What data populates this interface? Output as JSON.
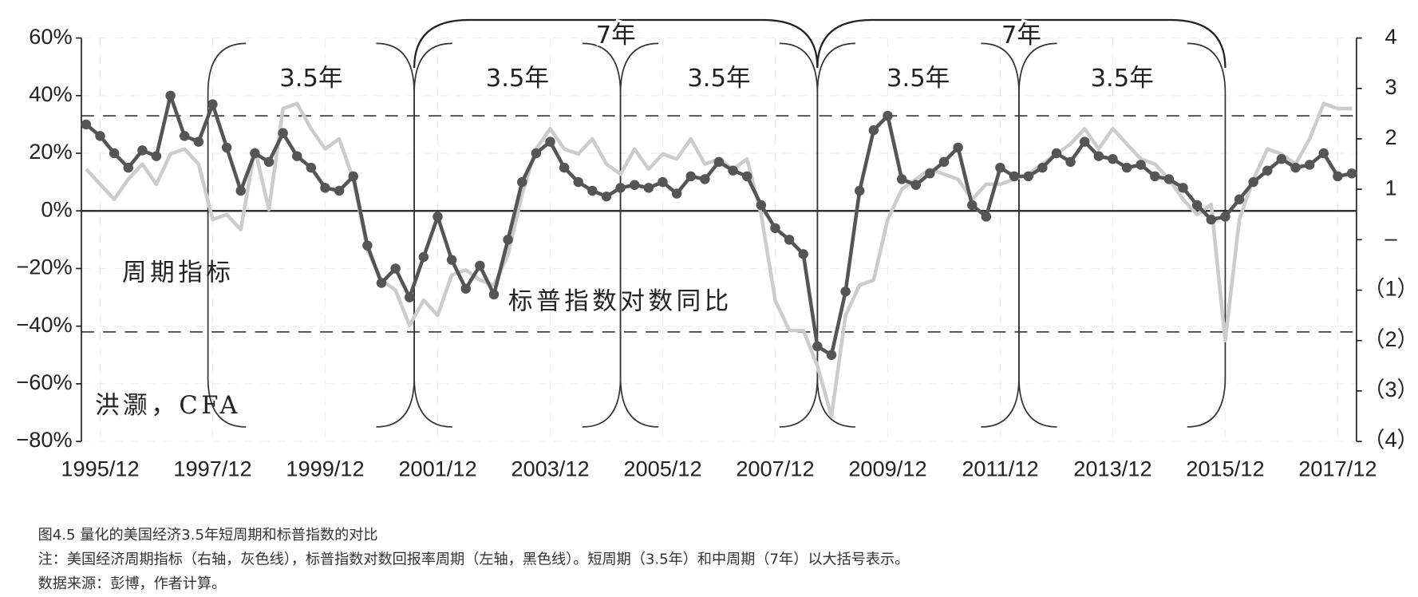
{
  "chart_data": {
    "type": "line",
    "x": [
      "1995/09",
      "1995/12",
      "1996/03",
      "1996/06",
      "1996/09",
      "1996/12",
      "1997/03",
      "1997/06",
      "1997/09",
      "1997/12",
      "1998/03",
      "1998/06",
      "1998/09",
      "1998/12",
      "1999/03",
      "1999/06",
      "1999/09",
      "1999/12",
      "2000/03",
      "2000/06",
      "2000/09",
      "2000/12",
      "2001/03",
      "2001/06",
      "2001/09",
      "2001/12",
      "2002/03",
      "2002/06",
      "2002/09",
      "2002/12",
      "2003/03",
      "2003/06",
      "2003/09",
      "2003/12",
      "2004/03",
      "2004/06",
      "2004/09",
      "2004/12",
      "2005/03",
      "2005/06",
      "2005/09",
      "2005/12",
      "2006/03",
      "2006/06",
      "2006/09",
      "2006/12",
      "2007/03",
      "2007/06",
      "2007/09",
      "2007/12",
      "2008/03",
      "2008/06",
      "2008/09",
      "2008/12",
      "2009/03",
      "2009/06",
      "2009/09",
      "2009/12",
      "2010/03",
      "2010/06",
      "2010/09",
      "2010/12",
      "2011/03",
      "2011/06",
      "2011/09",
      "2011/12",
      "2012/03",
      "2012/06",
      "2012/09",
      "2012/12",
      "2013/03",
      "2013/06",
      "2013/09",
      "2013/12",
      "2014/03",
      "2014/06",
      "2014/09",
      "2014/12",
      "2015/03",
      "2015/06",
      "2015/09",
      "2015/12",
      "2016/03",
      "2016/06",
      "2016/09",
      "2016/12",
      "2017/03",
      "2017/06",
      "2017/09",
      "2017/12",
      "2018/03"
    ],
    "series": [
      {
        "name": "标普指数对数同比",
        "color": "#555555",
        "axis": "y",
        "markers": true,
        "values": [
          30,
          26,
          20,
          15,
          21,
          19,
          40,
          26,
          24,
          37,
          22,
          7,
          20,
          17,
          27,
          19,
          15,
          8,
          7,
          12,
          -12,
          -25,
          -20,
          -30,
          -16,
          -2,
          -17,
          -27,
          -19,
          -29,
          -10,
          10,
          20,
          24,
          15,
          10,
          7,
          5,
          8,
          9,
          8,
          10,
          6,
          12,
          11,
          17,
          14,
          12,
          2,
          -6,
          -10,
          -15,
          -47,
          -50,
          -28,
          7,
          28,
          33,
          11,
          9,
          13,
          17,
          22,
          2,
          -2,
          15,
          12,
          12,
          15,
          20,
          17,
          24,
          19,
          18,
          15,
          16,
          12,
          11,
          8,
          2,
          -3,
          -2,
          4,
          10,
          14,
          18,
          15,
          16,
          20,
          12,
          13
        ]
      },
      {
        "name": "周期指标",
        "color": "#cccccc",
        "axis": "y2",
        "markers": false,
        "values": [
          1.4,
          1.1,
          0.8,
          1.2,
          1.5,
          1.1,
          1.7,
          1.8,
          1.5,
          0.4,
          0.5,
          0.2,
          1.8,
          0.6,
          2.6,
          2.7,
          2.2,
          1.8,
          2.0,
          1.2,
          -0.2,
          -0.8,
          -1.0,
          -1.7,
          -1.2,
          -1.5,
          -0.7,
          -0.6,
          -0.8,
          -0.9,
          -0.3,
          0.9,
          1.8,
          2.2,
          1.8,
          1.7,
          2.0,
          1.5,
          1.3,
          1.8,
          1.4,
          1.7,
          1.6,
          2.0,
          1.5,
          1.6,
          1.4,
          1.6,
          0.5,
          -1.2,
          -1.8,
          -1.8,
          -2.5,
          -3.5,
          -1.5,
          -0.9,
          -0.8,
          0.4,
          1.0,
          1.2,
          1.4,
          1.3,
          1.2,
          0.8,
          1.1,
          1.1,
          1.2,
          1.3,
          1.5,
          1.7,
          1.9,
          2.2,
          1.8,
          2.2,
          1.9,
          1.6,
          1.5,
          1.2,
          0.8,
          0.5,
          0.7,
          -2.0,
          0.4,
          1.2,
          1.8,
          1.7,
          1.5,
          2.0,
          2.7,
          2.6,
          2.6
        ]
      }
    ],
    "xlim": [
      "1995/08",
      "2018/04"
    ],
    "xticks": [
      "1995/12",
      "1997/12",
      "1999/12",
      "2001/12",
      "2003/12",
      "2005/12",
      "2007/12",
      "2009/12",
      "2011/12",
      "2013/12",
      "2015/12",
      "2017/12"
    ],
    "ylim": [
      -80,
      60
    ],
    "yticks": [
      {
        "value": 60,
        "label": "60%"
      },
      {
        "value": 40,
        "label": "40%"
      },
      {
        "value": 20,
        "label": "20%"
      },
      {
        "value": 0,
        "label": "0%"
      },
      {
        "value": -20,
        "label": "−20%"
      },
      {
        "value": -40,
        "label": "−40%"
      },
      {
        "value": -60,
        "label": "−60%"
      },
      {
        "value": -80,
        "label": "−80%"
      }
    ],
    "y2lim": [
      -4,
      4
    ],
    "y2ticks": [
      4,
      3,
      2,
      1,
      {
        "value": 0,
        "label": "–"
      },
      {
        "value": -1,
        "label": "（1）"
      },
      {
        "value": -2,
        "label": "（2）"
      },
      {
        "value": -3,
        "label": "（3）"
      },
      {
        "value": -4,
        "label": "（4）"
      }
    ],
    "reference_lines": [
      33,
      -42
    ],
    "grid": true,
    "cycles": [
      {
        "label": "3.5年",
        "start": "1997/11",
        "end": "2001/07"
      },
      {
        "label": "3.5年",
        "start": "2001/07",
        "end": "2005/03"
      },
      {
        "label": "3.5年",
        "start": "2005/03",
        "end": "2008/09"
      },
      {
        "label": "3.5年",
        "start": "2008/09",
        "end": "2012/04"
      },
      {
        "label": "3.5年",
        "start": "2012/04",
        "end": "2015/12"
      }
    ],
    "long_cycles": [
      {
        "label": "7年",
        "start": "2001/07",
        "end": "2008/09"
      },
      {
        "label": "7年",
        "start": "2008/09",
        "end": "2015/12"
      }
    ],
    "source_label": "洪灏，CFA"
  },
  "caption": {
    "title": "图4.5 量化的美国经济3.5年短周期和标普指数的对比",
    "note": "注：美国经济周期指标（右轴，灰色线），标普指数对数回报率周期（左轴，黑色线）。短周期（3.5年）和中周期（7年）以大括号表示。",
    "source": "数据来源：彭博，作者计算。"
  }
}
